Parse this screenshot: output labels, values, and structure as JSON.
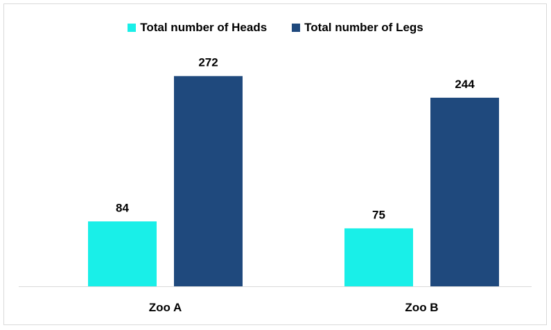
{
  "chart_data": {
    "type": "bar",
    "categories": [
      "Zoo A",
      "Zoo B"
    ],
    "series": [
      {
        "name": "Total number of Heads",
        "values": [
          84,
          75
        ],
        "color": "#19EFE8"
      },
      {
        "name": "Total number of Legs",
        "values": [
          272,
          244
        ],
        "color": "#1F497D"
      }
    ],
    "ylim": [
      0,
      300
    ],
    "grid": false,
    "legend": "top-center",
    "data_labels": true,
    "axis_color": "#d9d9d9"
  }
}
